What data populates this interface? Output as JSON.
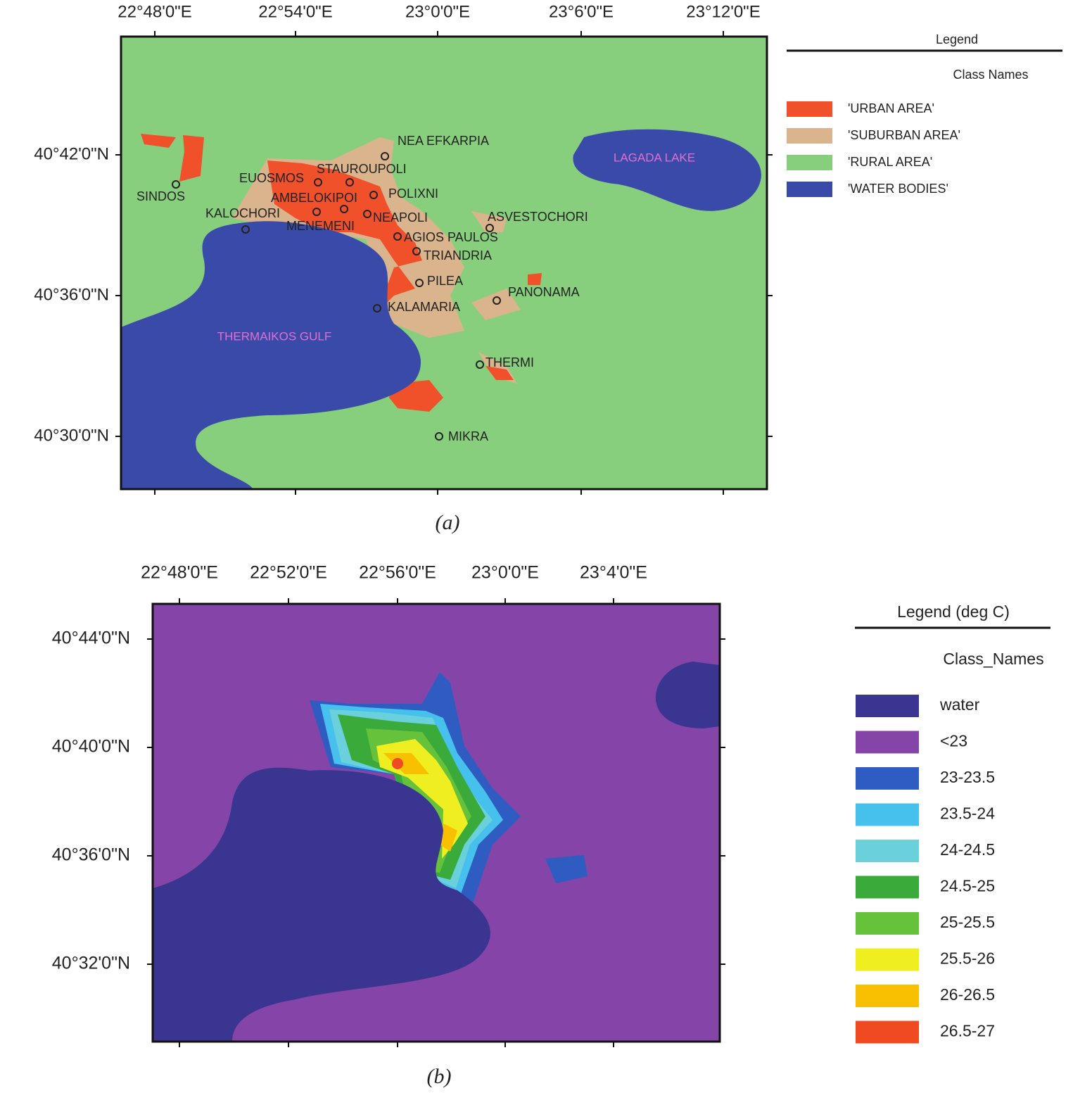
{
  "panel_a": {
    "lon_ticks": [
      "22°48'0\"E",
      "22°54'0\"E",
      "23°0'0\"E",
      "23°6'0\"E",
      "23°12'0\"E"
    ],
    "lat_ticks": [
      "40°42'0\"N",
      "40°36'0\"N",
      "40°30'0\"N"
    ],
    "places": [
      "NEA EFKARPIA",
      "STAUROUPOLI",
      "EUOSMOS",
      "SINDOS",
      "POLIXNI",
      "AMBELOKIPOI",
      "KALOCHORI",
      "MENEMENI",
      "NEAPOLI",
      "ASVESTOCHORI",
      "AGIOS PAULOS",
      "TRIANDRIA",
      "PILEA",
      "PANONAMA",
      "KALAMARIA",
      "THERMI",
      "MIKRA"
    ],
    "water_labels": [
      "THERMAIKOS GULF",
      "LAGADA LAKE"
    ],
    "legend": {
      "title": "Legend",
      "subtitle": "Class Names",
      "items": [
        {
          "label": "'URBAN AREA'",
          "color": "#f0502a"
        },
        {
          "label": "'SUBURBAN AREA'",
          "color": "#d9b48c"
        },
        {
          "label": "'RURAL AREA'",
          "color": "#88cf7d"
        },
        {
          "label": "'WATER BODIES'",
          "color": "#3a4aa8"
        }
      ]
    },
    "caption": "(a)"
  },
  "panel_b": {
    "lon_ticks": [
      "22°48'0\"E",
      "22°52'0\"E",
      "22°56'0\"E",
      "23°0'0\"E",
      "23°4'0\"E"
    ],
    "lat_ticks": [
      "40°44'0\"N",
      "40°40'0\"N",
      "40°36'0\"N",
      "40°32'0\"N"
    ],
    "legend": {
      "title": "Legend (deg C)",
      "subtitle": "Class_Names",
      "items": [
        {
          "label": "water",
          "color": "#3a3590"
        },
        {
          "label": "<23",
          "color": "#8444a8"
        },
        {
          "label": "23-23.5",
          "color": "#2f5cc0"
        },
        {
          "label": "23.5-24",
          "color": "#46c0ec"
        },
        {
          "label": "24-24.5",
          "color": "#6ad0dc"
        },
        {
          "label": "24.5-25",
          "color": "#3aaa3a"
        },
        {
          "label": "25-25.5",
          "color": "#66c23a"
        },
        {
          "label": "25.5-26",
          "color": "#eeee20"
        },
        {
          "label": "26-26.5",
          "color": "#f8c000"
        },
        {
          "label": "26.5-27",
          "color": "#f04a20"
        }
      ]
    },
    "caption": "(b)"
  }
}
